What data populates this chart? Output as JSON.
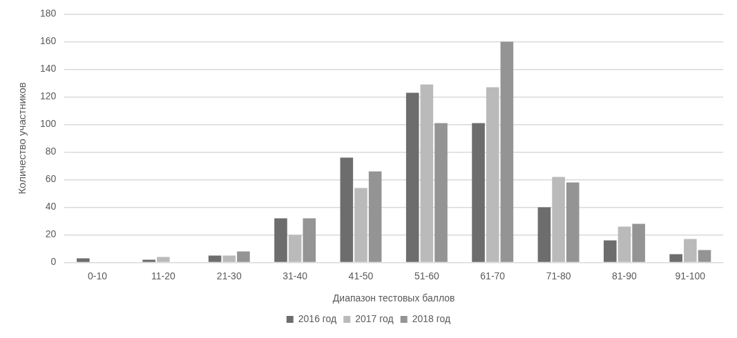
{
  "chart_data": {
    "type": "bar",
    "xlabel": "Диапазон тестовых баллов",
    "ylabel": "Количество участников",
    "categories": [
      "0-10",
      "11-20",
      "21-30",
      "31-40",
      "41-50",
      "51-60",
      "61-70",
      "71-80",
      "81-90",
      "91-100"
    ],
    "series": [
      {
        "name": "2016 год",
        "color": "#6d6d6d",
        "values": [
          3,
          2,
          5,
          32,
          76,
          123,
          101,
          40,
          16,
          6
        ]
      },
      {
        "name": "2017 год",
        "color": "#bababa",
        "values": [
          0,
          4,
          5,
          20,
          54,
          129,
          127,
          62,
          26,
          17
        ]
      },
      {
        "name": "2018 год",
        "color": "#949494",
        "values": [
          0,
          0,
          8,
          32,
          66,
          101,
          160,
          58,
          28,
          9
        ]
      }
    ],
    "ylim": [
      0,
      180
    ],
    "yticks": [
      0,
      20,
      40,
      60,
      80,
      100,
      120,
      140,
      160,
      180
    ],
    "grid": "y",
    "legend": "bottom"
  }
}
